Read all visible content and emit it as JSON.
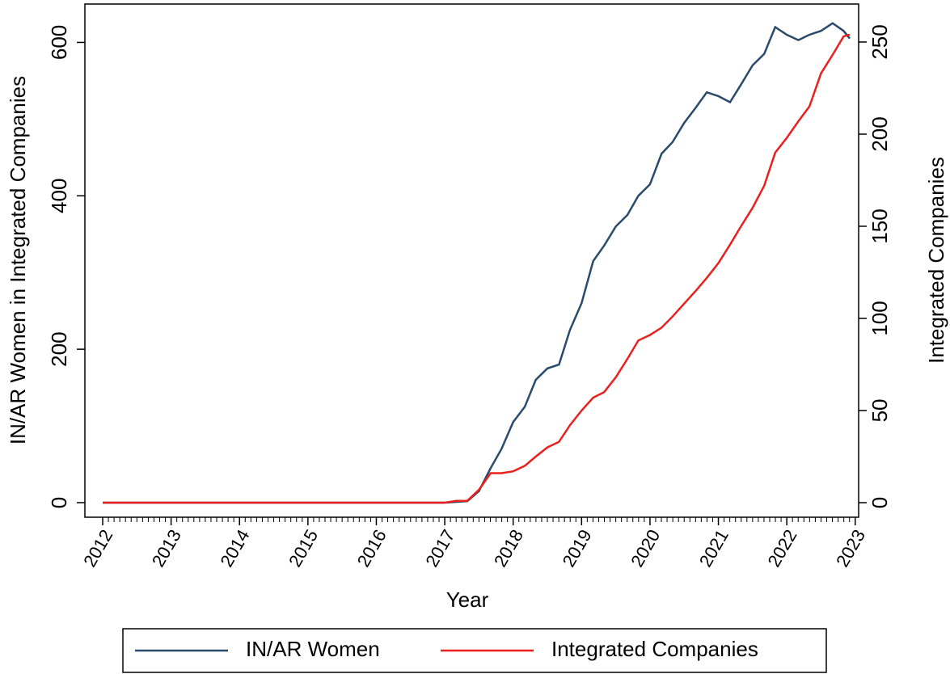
{
  "chart_data": {
    "type": "line",
    "x_label": "Year",
    "y_label": "IN/AR Women in Integrated Companies",
    "y2_label": "Integrated Companies",
    "x": [
      2012.0,
      2017.0,
      2017.17,
      2017.33,
      2017.5,
      2017.67,
      2017.83,
      2018.0,
      2018.17,
      2018.33,
      2018.5,
      2018.67,
      2018.83,
      2019.0,
      2019.17,
      2019.33,
      2019.5,
      2019.67,
      2019.83,
      2020.0,
      2020.17,
      2020.33,
      2020.5,
      2020.67,
      2020.83,
      2021.0,
      2021.17,
      2021.33,
      2021.5,
      2021.67,
      2021.83,
      2022.0,
      2022.17,
      2022.33,
      2022.5,
      2022.67,
      2022.83,
      2022.92
    ],
    "series": [
      {
        "name": "IN/AR Women",
        "color": "#2b4a6b",
        "axis": "y",
        "values": [
          0,
          0,
          1,
          2,
          15,
          45,
          70,
          105,
          125,
          160,
          175,
          180,
          225,
          260,
          315,
          335,
          360,
          375,
          400,
          415,
          455,
          470,
          495,
          515,
          535,
          530,
          522,
          545,
          570,
          585,
          620,
          610,
          603,
          610,
          615,
          625,
          615,
          605
        ]
      },
      {
        "name": "Integrated Companies",
        "color": "#e8201e",
        "axis": "y2",
        "values": [
          0,
          0,
          1,
          1,
          7,
          16,
          16,
          17,
          20,
          25,
          30,
          33,
          42,
          50,
          57,
          60,
          68,
          78,
          88,
          91,
          95,
          101,
          108,
          115,
          122,
          130,
          140,
          150,
          160,
          172,
          190,
          198,
          207,
          215,
          233,
          243,
          253,
          254
        ]
      }
    ],
    "xlim": [
      2011.74,
      2023.05
    ],
    "xticks": [
      2012,
      2013,
      2014,
      2015,
      2016,
      2017,
      2018,
      2019,
      2020,
      2021,
      2022,
      2023
    ],
    "ylim": [
      -19,
      650
    ],
    "yticks": [
      0,
      200,
      400,
      600
    ],
    "y2lim": [
      -7.9,
      270.6
    ],
    "y2ticks": [
      0,
      50,
      100,
      150,
      200,
      250
    ],
    "legend": "bottom"
  }
}
